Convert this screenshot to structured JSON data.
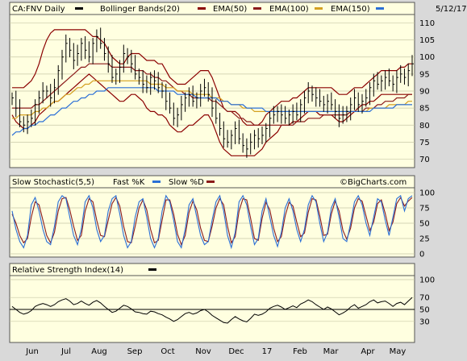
{
  "chart_data": [
    {
      "type": "candlestick",
      "header": {
        "symbol_text": "CA:FNV Daily",
        "legend": [
          {
            "label": "Bollinger Bands(20)",
            "color": "#8b0000"
          },
          {
            "label": "EMA(50)",
            "color": "#8b1a1a"
          },
          {
            "label": "EMA(100)",
            "color": "#d4a020"
          },
          {
            "label": "EMA(150)",
            "color": "#2a6fd6"
          }
        ],
        "date": "5/12/17"
      },
      "ylim": [
        68,
        112
      ],
      "yticks": [
        "110",
        "105",
        "100",
        "95",
        "90",
        "85",
        "80",
        "75",
        "70"
      ],
      "series": [
        {
          "name": "Price",
          "color": "#000000",
          "values": [
            88,
            85,
            81,
            80,
            81,
            82,
            86,
            88,
            90,
            90,
            88,
            91,
            96,
            100,
            104,
            102,
            99,
            101,
            104,
            102,
            100,
            104,
            106,
            104,
            101,
            98,
            94,
            95,
            97,
            101,
            100,
            98,
            95,
            94,
            92,
            91,
            94,
            93,
            91,
            90,
            87,
            85,
            82,
            83,
            86,
            88,
            89,
            87,
            88,
            90,
            91,
            89,
            85,
            82,
            79,
            76,
            75,
            77,
            79,
            76,
            74,
            73,
            75,
            77,
            76,
            77,
            79,
            82,
            83,
            84,
            83,
            82,
            83,
            84,
            83,
            86,
            88,
            90,
            89,
            88,
            87,
            86,
            87,
            86,
            84,
            82,
            83,
            84,
            86,
            88,
            86,
            87,
            88,
            91,
            93,
            92,
            93,
            94,
            93,
            92,
            94,
            95,
            94,
            96,
            98
          ]
        },
        {
          "name": "Bollinger upper",
          "color": "#8b0000",
          "values": [
            91,
            91,
            91,
            91,
            92,
            93,
            95,
            98,
            102,
            105,
            107,
            108,
            108,
            108,
            108,
            108,
            108,
            108,
            108,
            108,
            107,
            106,
            106,
            105,
            104,
            102,
            100,
            99,
            98,
            98,
            100,
            101,
            101,
            101,
            100,
            99,
            99,
            99,
            98,
            98,
            96,
            94,
            93,
            92,
            92,
            92,
            93,
            94,
            95,
            96,
            96,
            96,
            94,
            91,
            88,
            85,
            84,
            84,
            84,
            83,
            81,
            80,
            80,
            80,
            80,
            81,
            83,
            84,
            85,
            86,
            87,
            87,
            87,
            88,
            88,
            89,
            90,
            91,
            91,
            91,
            91,
            91,
            91,
            91,
            90,
            89,
            89,
            89,
            90,
            91,
            91,
            91,
            92,
            93,
            94,
            95,
            96,
            96,
            96,
            96,
            96,
            97,
            97,
            98,
            98
          ]
        },
        {
          "name": "Bollinger lower",
          "color": "#8b0000",
          "values": [
            83,
            81,
            80,
            79,
            79,
            80,
            81,
            83,
            84,
            85,
            86,
            87,
            87,
            88,
            89,
            90,
            91,
            92,
            93,
            94,
            95,
            94,
            93,
            92,
            91,
            90,
            89,
            88,
            87,
            87,
            88,
            89,
            89,
            88,
            87,
            85,
            84,
            84,
            83,
            83,
            82,
            80,
            79,
            78,
            78,
            79,
            80,
            80,
            81,
            82,
            83,
            83,
            81,
            78,
            75,
            73,
            72,
            71,
            71,
            71,
            71,
            71,
            71,
            71,
            72,
            73,
            75,
            76,
            77,
            78,
            80,
            80,
            80,
            81,
            81,
            82,
            83,
            84,
            84,
            84,
            83,
            83,
            83,
            83,
            82,
            81,
            81,
            82,
            83,
            84,
            85,
            86,
            86,
            87,
            87,
            88,
            89,
            89,
            89,
            89,
            89,
            89,
            89,
            89,
            89
          ]
        },
        {
          "name": "EMA(50)",
          "color": "#8b1a1a",
          "values": [
            85,
            85,
            85,
            85,
            85,
            85,
            86,
            86,
            87,
            88,
            89,
            90,
            91,
            92,
            93,
            94,
            95,
            96,
            97,
            97,
            98,
            98,
            98,
            98,
            98,
            98,
            97,
            97,
            97,
            97,
            97,
            97,
            96,
            96,
            96,
            95,
            95,
            94,
            94,
            93,
            93,
            92,
            91,
            90,
            90,
            89,
            89,
            88,
            88,
            88,
            88,
            88,
            87,
            87,
            86,
            85,
            84,
            84,
            83,
            82,
            82,
            81,
            81,
            80,
            80,
            80,
            80,
            80,
            80,
            80,
            80,
            80,
            80,
            80,
            81,
            81,
            81,
            82,
            82,
            82,
            82,
            83,
            83,
            83,
            83,
            83,
            83,
            83,
            84,
            84,
            84,
            84,
            85,
            85,
            85,
            86,
            86,
            87,
            87,
            87,
            88,
            88,
            88,
            89,
            89
          ]
        },
        {
          "name": "EMA(100)",
          "color": "#d4a020",
          "values": [
            82,
            82,
            83,
            83,
            83,
            83,
            84,
            84,
            85,
            85,
            86,
            87,
            87,
            88,
            89,
            89,
            90,
            91,
            91,
            92,
            92,
            93,
            93,
            93,
            93,
            93,
            93,
            93,
            93,
            93,
            93,
            93,
            93,
            93,
            93,
            93,
            92,
            92,
            92,
            92,
            91,
            91,
            91,
            90,
            90,
            90,
            90,
            89,
            89,
            89,
            89,
            89,
            88,
            88,
            88,
            87,
            87,
            86,
            86,
            86,
            85,
            85,
            85,
            84,
            84,
            84,
            84,
            84,
            84,
            84,
            84,
            84,
            84,
            84,
            84,
            84,
            84,
            84,
            84,
            84,
            84,
            84,
            84,
            84,
            84,
            84,
            84,
            84,
            84,
            84,
            84,
            84,
            84,
            85,
            85,
            85,
            85,
            85,
            86,
            86,
            86,
            86,
            86,
            87,
            87
          ]
        },
        {
          "name": "EMA(150)",
          "color": "#2a6fd6",
          "values": [
            77,
            78,
            78,
            79,
            79,
            80,
            80,
            81,
            81,
            82,
            83,
            83,
            84,
            85,
            85,
            86,
            87,
            87,
            88,
            88,
            89,
            89,
            90,
            90,
            90,
            91,
            91,
            91,
            91,
            91,
            91,
            91,
            91,
            91,
            91,
            91,
            91,
            91,
            90,
            90,
            90,
            90,
            90,
            89,
            89,
            89,
            89,
            89,
            88,
            88,
            88,
            88,
            88,
            88,
            87,
            87,
            87,
            86,
            86,
            86,
            86,
            85,
            85,
            85,
            85,
            85,
            84,
            84,
            84,
            84,
            84,
            84,
            84,
            84,
            84,
            84,
            84,
            84,
            84,
            84,
            84,
            84,
            84,
            84,
            84,
            84,
            84,
            84,
            84,
            84,
            84,
            84,
            84,
            84,
            85,
            85,
            85,
            85,
            85,
            85,
            86,
            86,
            86,
            86,
            86
          ]
        }
      ]
    },
    {
      "type": "line",
      "header": {
        "title": "Slow Stochastic(5,5)",
        "legend": [
          {
            "label": "Fast %K",
            "color": "#2a6fd6"
          },
          {
            "label": "Slow %D",
            "color": "#8b1a1a"
          }
        ],
        "credit": "©BigCharts.com"
      },
      "ylim": [
        0,
        100
      ],
      "yticks": [
        "100",
        "75",
        "50",
        "25",
        "0"
      ],
      "series": [
        {
          "name": "Fast %K",
          "color": "#2a6fd6",
          "values": [
            70,
            40,
            20,
            10,
            30,
            80,
            92,
            70,
            40,
            20,
            15,
            45,
            85,
            95,
            90,
            60,
            30,
            15,
            40,
            85,
            95,
            75,
            40,
            20,
            30,
            70,
            90,
            95,
            65,
            30,
            10,
            20,
            60,
            85,
            90,
            60,
            25,
            10,
            25,
            70,
            95,
            85,
            55,
            20,
            10,
            40,
            80,
            90,
            60,
            30,
            15,
            20,
            55,
            85,
            95,
            70,
            30,
            10,
            35,
            85,
            95,
            80,
            45,
            15,
            25,
            70,
            90,
            60,
            30,
            12,
            35,
            75,
            90,
            70,
            40,
            20,
            40,
            80,
            95,
            85,
            50,
            20,
            35,
            75,
            90,
            60,
            25,
            20,
            50,
            85,
            95,
            80,
            50,
            30,
            60,
            90,
            85,
            55,
            30,
            60,
            90,
            95,
            70,
            90,
            95
          ]
        },
        {
          "name": "Slow %D",
          "color": "#8b1a1a",
          "values": [
            65,
            50,
            30,
            18,
            25,
            60,
            85,
            80,
            55,
            30,
            18,
            35,
            70,
            90,
            92,
            72,
            45,
            22,
            30,
            70,
            90,
            85,
            55,
            30,
            28,
            55,
            82,
            92,
            78,
            45,
            20,
            18,
            45,
            75,
            88,
            72,
            40,
            18,
            22,
            55,
            88,
            88,
            65,
            32,
            15,
            30,
            68,
            86,
            72,
            42,
            22,
            20,
            45,
            75,
            90,
            80,
            45,
            18,
            28,
            70,
            90,
            88,
            58,
            25,
            22,
            58,
            84,
            72,
            42,
            20,
            28,
            62,
            84,
            78,
            52,
            28,
            34,
            68,
            90,
            88,
            62,
            30,
            32,
            65,
            86,
            70,
            38,
            24,
            42,
            75,
            90,
            86,
            62,
            38,
            52,
            82,
            88,
            66,
            38,
            52,
            82,
            92,
            78,
            86,
            92
          ]
        }
      ]
    },
    {
      "type": "line",
      "header": {
        "title": "Relative Strength Index(14)"
      },
      "ylim": [
        0,
        100
      ],
      "yticks": [
        "100",
        "70",
        "50",
        "30"
      ],
      "series": [
        {
          "name": "RSI(14)",
          "color": "#000000",
          "values": [
            55,
            50,
            45,
            42,
            44,
            48,
            55,
            58,
            60,
            58,
            55,
            58,
            63,
            66,
            68,
            64,
            58,
            60,
            64,
            60,
            57,
            62,
            65,
            61,
            55,
            50,
            45,
            47,
            52,
            57,
            55,
            51,
            46,
            45,
            43,
            42,
            47,
            46,
            43,
            41,
            37,
            34,
            30,
            33,
            38,
            43,
            45,
            42,
            44,
            48,
            50,
            46,
            40,
            36,
            32,
            28,
            27,
            33,
            38,
            34,
            31,
            29,
            35,
            42,
            40,
            42,
            46,
            52,
            55,
            57,
            54,
            50,
            53,
            56,
            53,
            59,
            62,
            66,
            63,
            58,
            54,
            50,
            54,
            51,
            46,
            41,
            44,
            48,
            54,
            58,
            52,
            55,
            58,
            63,
            66,
            61,
            63,
            64,
            60,
            55,
            60,
            62,
            58,
            64,
            70
          ]
        }
      ]
    }
  ],
  "x_axis": {
    "labels": [
      "Jun",
      "Jul",
      "Aug",
      "Sep",
      "Oct",
      "Nov",
      "Dec",
      "17",
      "Feb",
      "Mar",
      "Apr",
      "May"
    ]
  }
}
